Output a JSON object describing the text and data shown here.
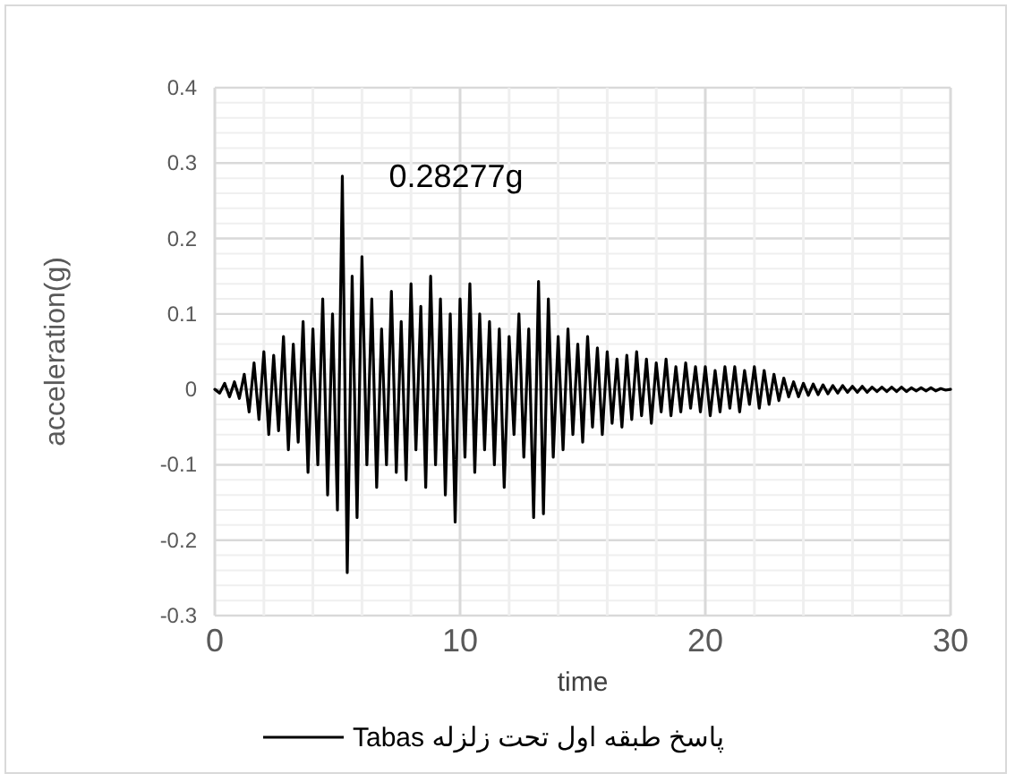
{
  "chart_data": {
    "type": "line",
    "xlabel": "time",
    "ylabel": "acceleration(g)",
    "xlim": [
      0,
      30
    ],
    "xticks": [
      0,
      10,
      20,
      30
    ],
    "ylim": [
      -0.3,
      0.4
    ],
    "yticks": [
      -0.3,
      -0.2,
      -0.1,
      0,
      0.1,
      0.2,
      0.3,
      0.4
    ],
    "grid": true,
    "legend": "bottom",
    "marker": "none",
    "line_style": "solid",
    "annotations": [
      {
        "text": "0.28277g",
        "x": 5.2,
        "y": 0.28277
      }
    ],
    "x": [
      0,
      0.2,
      0.4,
      0.6,
      0.8,
      1,
      1.2,
      1.4,
      1.6,
      1.8,
      2,
      2.2,
      2.4,
      2.6,
      2.8,
      3,
      3.2,
      3.4,
      3.6,
      3.8,
      4,
      4.2,
      4.4,
      4.6,
      4.8,
      5,
      5.2,
      5.4,
      5.6,
      5.8,
      6,
      6.2,
      6.4,
      6.6,
      6.8,
      7,
      7.2,
      7.4,
      7.6,
      7.8,
      8,
      8.2,
      8.4,
      8.6,
      8.8,
      9,
      9.2,
      9.4,
      9.6,
      9.8,
      10,
      10.2,
      10.4,
      10.6,
      10.8,
      11,
      11.2,
      11.4,
      11.6,
      11.8,
      12,
      12.2,
      12.4,
      12.6,
      12.8,
      13,
      13.2,
      13.4,
      13.6,
      13.8,
      14,
      14.2,
      14.4,
      14.6,
      14.8,
      15,
      15.2,
      15.4,
      15.6,
      15.8,
      16,
      16.2,
      16.4,
      16.6,
      16.8,
      17,
      17.2,
      17.4,
      17.6,
      17.8,
      18,
      18.2,
      18.4,
      18.6,
      18.8,
      19,
      19.2,
      19.4,
      19.6,
      19.8,
      20,
      20.2,
      20.4,
      20.6,
      20.8,
      21,
      21.2,
      21.4,
      21.6,
      21.8,
      22,
      22.2,
      22.4,
      22.6,
      22.8,
      23,
      23.2,
      23.4,
      23.6,
      23.8,
      24,
      24.2,
      24.4,
      24.6,
      24.8,
      25,
      25.2,
      25.4,
      25.6,
      25.8,
      26,
      26.2,
      26.4,
      26.6,
      26.8,
      27,
      27.2,
      27.4,
      27.6,
      27.8,
      28,
      28.2,
      28.4,
      28.6,
      28.8,
      29,
      29.2,
      29.4,
      29.6,
      29.8,
      30
    ],
    "series": [
      {
        "name": "پاسخ طبقه اول تحت زلزله Tabas",
        "color": "#000000",
        "values": [
          0,
          -0.005,
          0.008,
          -0.01,
          0.01,
          -0.012,
          0.02,
          -0.03,
          0.035,
          -0.04,
          0.05,
          -0.06,
          0.045,
          -0.055,
          0.07,
          -0.08,
          0.06,
          -0.07,
          0.09,
          -0.11,
          0.08,
          -0.1,
          0.12,
          -0.14,
          0.1,
          -0.16,
          0.28277,
          -0.243,
          0.15,
          -0.17,
          0.176,
          -0.1,
          0.12,
          -0.13,
          0.08,
          -0.1,
          0.13,
          -0.11,
          0.09,
          -0.12,
          0.14,
          -0.08,
          0.11,
          -0.13,
          0.15,
          -0.1,
          0.12,
          -0.14,
          0.1,
          -0.176,
          0.12,
          -0.09,
          0.14,
          -0.11,
          0.1,
          -0.08,
          0.09,
          -0.1,
          0.08,
          -0.13,
          0.07,
          -0.06,
          0.1,
          -0.09,
          0.08,
          -0.17,
          0.143,
          -0.165,
          0.12,
          -0.09,
          0.07,
          -0.08,
          0.08,
          -0.06,
          0.06,
          -0.07,
          0.07,
          -0.05,
          0.055,
          -0.06,
          0.05,
          -0.045,
          0.04,
          -0.05,
          0.045,
          -0.04,
          0.05,
          -0.035,
          0.04,
          -0.045,
          0.035,
          -0.03,
          0.04,
          -0.035,
          0.03,
          -0.03,
          0.035,
          -0.025,
          0.03,
          -0.03,
          0.03,
          -0.035,
          0.025,
          -0.03,
          0.03,
          -0.025,
          0.03,
          -0.03,
          0.025,
          -0.02,
          0.03,
          -0.025,
          0.025,
          -0.02,
          0.02,
          -0.015,
          0.015,
          -0.01,
          0.01,
          -0.01,
          0.008,
          -0.008,
          0.007,
          -0.007,
          0.006,
          -0.006,
          0.005,
          -0.005,
          0.005,
          -0.004,
          0.004,
          -0.004,
          0.004,
          -0.004,
          0.003,
          -0.003,
          0.003,
          -0.003,
          0.003,
          -0.003,
          0.003,
          -0.003,
          0.002,
          -0.002,
          0.002,
          -0.002,
          0.002,
          -0.002,
          0.001,
          -0.001,
          0
        ]
      }
    ]
  }
}
